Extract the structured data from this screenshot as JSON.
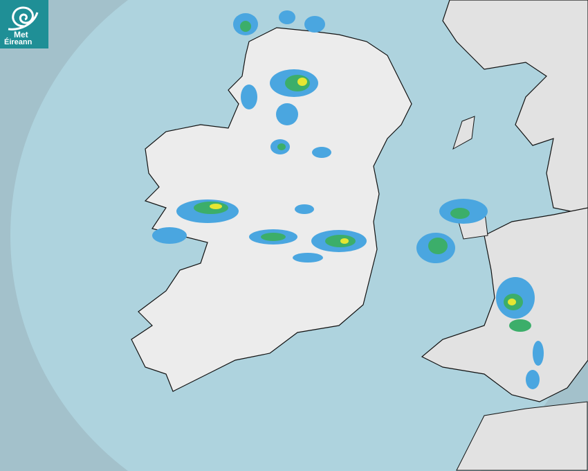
{
  "logo": {
    "line1": "Met",
    "line2": "Éireann",
    "icon": "spiral-wave-icon"
  },
  "colors": {
    "sea_outside_radar": "#a3c1cb",
    "sea_radar_coverage": "#aed3de",
    "land": "#ececec",
    "rain_light": "#4aa6e0",
    "rain_moderate": "#3cae6a",
    "rain_heavy": "#e6e632",
    "brand": "#1f8f96"
  }
}
